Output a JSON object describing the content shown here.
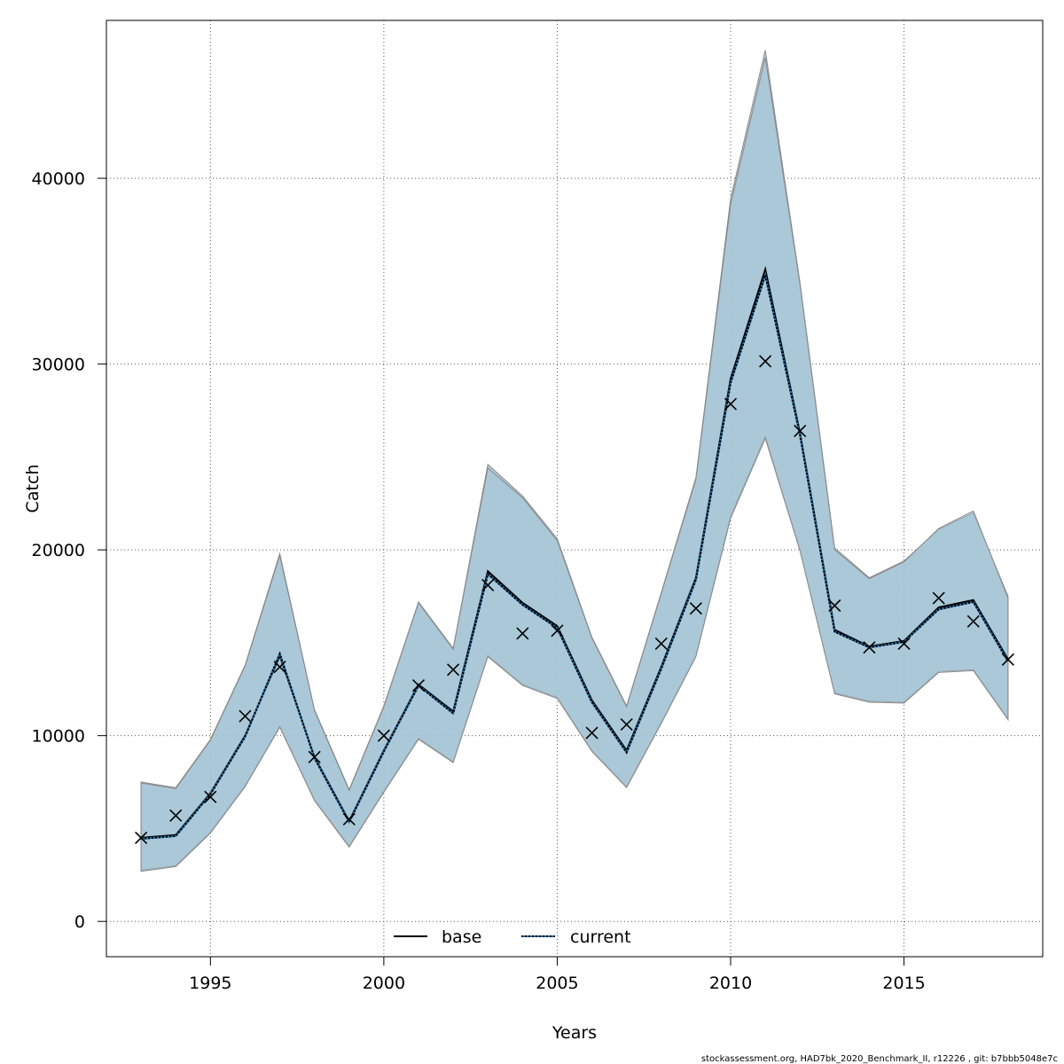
{
  "chart_data": {
    "type": "line",
    "xlabel": "Years",
    "ylabel": "Catch",
    "xlim": [
      1992,
      2019
    ],
    "ylim": [
      -1900,
      48500
    ],
    "x_ticks": [
      1995,
      2000,
      2005,
      2010,
      2015
    ],
    "y_ticks": [
      0,
      10000,
      20000,
      30000,
      40000
    ],
    "grid": true,
    "legend_position": "bottom-center",
    "colors": {
      "band_fill": "#a3c4d5",
      "band_edge": "#8a8a8a",
      "base_line": "#000000",
      "current_line": "#1f6fa8",
      "observed_marker": "#000000"
    },
    "x": [
      1993,
      1994,
      1995,
      1996,
      1997,
      1998,
      1999,
      2000,
      2001,
      2002,
      2003,
      2004,
      2005,
      2006,
      2007,
      2008,
      2009,
      2010,
      2011,
      2012,
      2013,
      2014,
      2015,
      2016,
      2017,
      2018
    ],
    "series": [
      {
        "name": "base",
        "style": "solid",
        "values": [
          4500,
          4650,
          6900,
          10000,
          14300,
          8850,
          5400,
          9200,
          12750,
          11300,
          18850,
          17150,
          15900,
          11900,
          9200,
          13700,
          18500,
          29200,
          35100,
          26300,
          15700,
          14800,
          15100,
          16900,
          17300,
          14100
        ],
        "lower": [
          2750,
          3000,
          4800,
          7300,
          10500,
          6550,
          4050,
          7000,
          9850,
          8600,
          14300,
          12750,
          12050,
          9200,
          7250,
          10700,
          14300,
          21800,
          26100,
          20000,
          12300,
          11850,
          11800,
          13450,
          13550,
          10900
        ],
        "upper": [
          7500,
          7200,
          9800,
          13800,
          19800,
          11400,
          7100,
          11600,
          17200,
          14700,
          24600,
          22900,
          20600,
          15300,
          11600,
          17700,
          23900,
          38900,
          46900,
          34400,
          20100,
          18500,
          19400,
          21100,
          22000,
          17500
        ]
      },
      {
        "name": "current",
        "style": "dotted",
        "values": [
          4450,
          4600,
          6850,
          9950,
          14400,
          8800,
          5350,
          9150,
          12700,
          11200,
          18700,
          17050,
          15800,
          11800,
          9100,
          13600,
          18400,
          29000,
          34800,
          26200,
          15600,
          14750,
          15050,
          16800,
          17200,
          14000
        ],
        "lower": [
          2700,
          2950,
          4750,
          7250,
          10450,
          6500,
          4000,
          6950,
          9800,
          8550,
          14250,
          12700,
          12000,
          9150,
          7200,
          10650,
          14250,
          21700,
          26000,
          19950,
          12250,
          11800,
          11750,
          13400,
          13500,
          10850
        ],
        "upper": [
          7450,
          7150,
          9750,
          13750,
          19700,
          11350,
          7050,
          11550,
          17150,
          14650,
          24400,
          22800,
          20500,
          15250,
          11550,
          17650,
          23800,
          38600,
          46500,
          34300,
          20000,
          18450,
          19350,
          21150,
          22100,
          17400
        ]
      }
    ],
    "observed": [
      4500,
      5700,
      6700,
      11050,
      13700,
      8850,
      5500,
      10000,
      12700,
      13550,
      18100,
      15500,
      15650,
      10150,
      10600,
      14950,
      16850,
      27850,
      30150,
      26400,
      17000,
      14750,
      14950,
      17400,
      16150,
      14100
    ]
  },
  "footer_text": "stockassessment.org, HAD7bk_2020_Benchmark_II, r12226 , git: b7bbb5048e7c"
}
